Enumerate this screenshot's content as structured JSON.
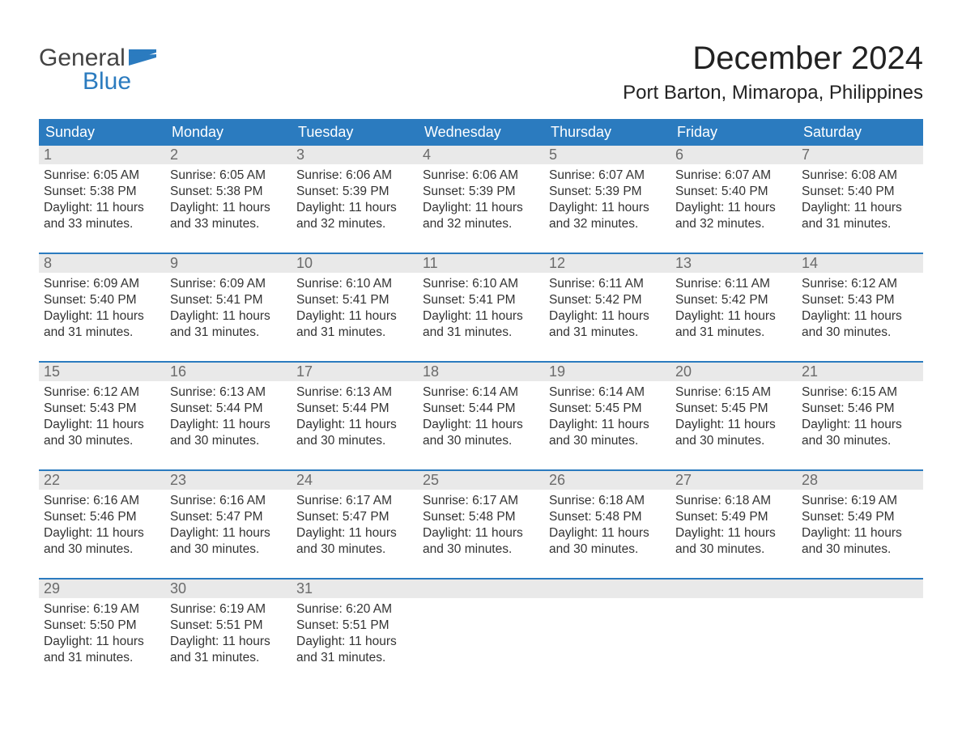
{
  "colors": {
    "header_bg": "#2b7bbf",
    "header_text": "#ffffff",
    "week_border": "#2b7bbf",
    "daynum_bg": "#e9e9e9",
    "daynum_text": "#6b6b6b",
    "body_text": "#333333",
    "page_bg": "#ffffff",
    "logo_blue": "#2b7bbf",
    "logo_gray": "#444444"
  },
  "typography": {
    "month_title_fontsize": 40,
    "location_fontsize": 24,
    "dayheader_fontsize": 18,
    "daynum_fontsize": 18,
    "cell_fontsize": 15.5,
    "logo_fontsize": 30
  },
  "logo": {
    "line1": "General",
    "line2": "Blue"
  },
  "title": "December 2024",
  "location": "Port Barton, Mimaropa, Philippines",
  "day_names": [
    "Sunday",
    "Monday",
    "Tuesday",
    "Wednesday",
    "Thursday",
    "Friday",
    "Saturday"
  ],
  "weeks": [
    [
      {
        "n": "1",
        "sunrise": "Sunrise: 6:05 AM",
        "sunset": "Sunset: 5:38 PM",
        "d1": "Daylight: 11 hours",
        "d2": "and 33 minutes."
      },
      {
        "n": "2",
        "sunrise": "Sunrise: 6:05 AM",
        "sunset": "Sunset: 5:38 PM",
        "d1": "Daylight: 11 hours",
        "d2": "and 33 minutes."
      },
      {
        "n": "3",
        "sunrise": "Sunrise: 6:06 AM",
        "sunset": "Sunset: 5:39 PM",
        "d1": "Daylight: 11 hours",
        "d2": "and 32 minutes."
      },
      {
        "n": "4",
        "sunrise": "Sunrise: 6:06 AM",
        "sunset": "Sunset: 5:39 PM",
        "d1": "Daylight: 11 hours",
        "d2": "and 32 minutes."
      },
      {
        "n": "5",
        "sunrise": "Sunrise: 6:07 AM",
        "sunset": "Sunset: 5:39 PM",
        "d1": "Daylight: 11 hours",
        "d2": "and 32 minutes."
      },
      {
        "n": "6",
        "sunrise": "Sunrise: 6:07 AM",
        "sunset": "Sunset: 5:40 PM",
        "d1": "Daylight: 11 hours",
        "d2": "and 32 minutes."
      },
      {
        "n": "7",
        "sunrise": "Sunrise: 6:08 AM",
        "sunset": "Sunset: 5:40 PM",
        "d1": "Daylight: 11 hours",
        "d2": "and 31 minutes."
      }
    ],
    [
      {
        "n": "8",
        "sunrise": "Sunrise: 6:09 AM",
        "sunset": "Sunset: 5:40 PM",
        "d1": "Daylight: 11 hours",
        "d2": "and 31 minutes."
      },
      {
        "n": "9",
        "sunrise": "Sunrise: 6:09 AM",
        "sunset": "Sunset: 5:41 PM",
        "d1": "Daylight: 11 hours",
        "d2": "and 31 minutes."
      },
      {
        "n": "10",
        "sunrise": "Sunrise: 6:10 AM",
        "sunset": "Sunset: 5:41 PM",
        "d1": "Daylight: 11 hours",
        "d2": "and 31 minutes."
      },
      {
        "n": "11",
        "sunrise": "Sunrise: 6:10 AM",
        "sunset": "Sunset: 5:41 PM",
        "d1": "Daylight: 11 hours",
        "d2": "and 31 minutes."
      },
      {
        "n": "12",
        "sunrise": "Sunrise: 6:11 AM",
        "sunset": "Sunset: 5:42 PM",
        "d1": "Daylight: 11 hours",
        "d2": "and 31 minutes."
      },
      {
        "n": "13",
        "sunrise": "Sunrise: 6:11 AM",
        "sunset": "Sunset: 5:42 PM",
        "d1": "Daylight: 11 hours",
        "d2": "and 31 minutes."
      },
      {
        "n": "14",
        "sunrise": "Sunrise: 6:12 AM",
        "sunset": "Sunset: 5:43 PM",
        "d1": "Daylight: 11 hours",
        "d2": "and 30 minutes."
      }
    ],
    [
      {
        "n": "15",
        "sunrise": "Sunrise: 6:12 AM",
        "sunset": "Sunset: 5:43 PM",
        "d1": "Daylight: 11 hours",
        "d2": "and 30 minutes."
      },
      {
        "n": "16",
        "sunrise": "Sunrise: 6:13 AM",
        "sunset": "Sunset: 5:44 PM",
        "d1": "Daylight: 11 hours",
        "d2": "and 30 minutes."
      },
      {
        "n": "17",
        "sunrise": "Sunrise: 6:13 AM",
        "sunset": "Sunset: 5:44 PM",
        "d1": "Daylight: 11 hours",
        "d2": "and 30 minutes."
      },
      {
        "n": "18",
        "sunrise": "Sunrise: 6:14 AM",
        "sunset": "Sunset: 5:44 PM",
        "d1": "Daylight: 11 hours",
        "d2": "and 30 minutes."
      },
      {
        "n": "19",
        "sunrise": "Sunrise: 6:14 AM",
        "sunset": "Sunset: 5:45 PM",
        "d1": "Daylight: 11 hours",
        "d2": "and 30 minutes."
      },
      {
        "n": "20",
        "sunrise": "Sunrise: 6:15 AM",
        "sunset": "Sunset: 5:45 PM",
        "d1": "Daylight: 11 hours",
        "d2": "and 30 minutes."
      },
      {
        "n": "21",
        "sunrise": "Sunrise: 6:15 AM",
        "sunset": "Sunset: 5:46 PM",
        "d1": "Daylight: 11 hours",
        "d2": "and 30 minutes."
      }
    ],
    [
      {
        "n": "22",
        "sunrise": "Sunrise: 6:16 AM",
        "sunset": "Sunset: 5:46 PM",
        "d1": "Daylight: 11 hours",
        "d2": "and 30 minutes."
      },
      {
        "n": "23",
        "sunrise": "Sunrise: 6:16 AM",
        "sunset": "Sunset: 5:47 PM",
        "d1": "Daylight: 11 hours",
        "d2": "and 30 minutes."
      },
      {
        "n": "24",
        "sunrise": "Sunrise: 6:17 AM",
        "sunset": "Sunset: 5:47 PM",
        "d1": "Daylight: 11 hours",
        "d2": "and 30 minutes."
      },
      {
        "n": "25",
        "sunrise": "Sunrise: 6:17 AM",
        "sunset": "Sunset: 5:48 PM",
        "d1": "Daylight: 11 hours",
        "d2": "and 30 minutes."
      },
      {
        "n": "26",
        "sunrise": "Sunrise: 6:18 AM",
        "sunset": "Sunset: 5:48 PM",
        "d1": "Daylight: 11 hours",
        "d2": "and 30 minutes."
      },
      {
        "n": "27",
        "sunrise": "Sunrise: 6:18 AM",
        "sunset": "Sunset: 5:49 PM",
        "d1": "Daylight: 11 hours",
        "d2": "and 30 minutes."
      },
      {
        "n": "28",
        "sunrise": "Sunrise: 6:19 AM",
        "sunset": "Sunset: 5:49 PM",
        "d1": "Daylight: 11 hours",
        "d2": "and 30 minutes."
      }
    ],
    [
      {
        "n": "29",
        "sunrise": "Sunrise: 6:19 AM",
        "sunset": "Sunset: 5:50 PM",
        "d1": "Daylight: 11 hours",
        "d2": "and 31 minutes."
      },
      {
        "n": "30",
        "sunrise": "Sunrise: 6:19 AM",
        "sunset": "Sunset: 5:51 PM",
        "d1": "Daylight: 11 hours",
        "d2": "and 31 minutes."
      },
      {
        "n": "31",
        "sunrise": "Sunrise: 6:20 AM",
        "sunset": "Sunset: 5:51 PM",
        "d1": "Daylight: 11 hours",
        "d2": "and 31 minutes."
      },
      {
        "empty": true
      },
      {
        "empty": true
      },
      {
        "empty": true
      },
      {
        "empty": true
      }
    ]
  ]
}
